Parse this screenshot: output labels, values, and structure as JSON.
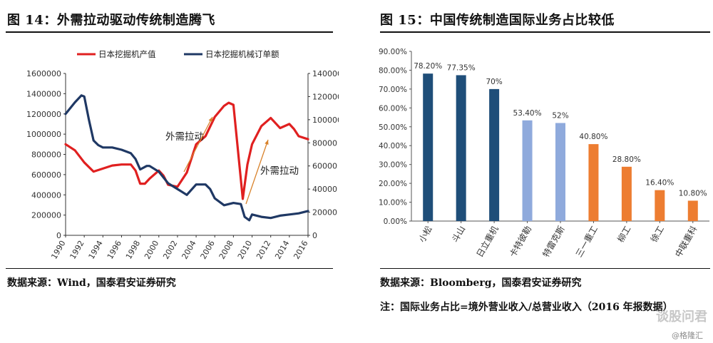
{
  "left": {
    "title": "图 14：外需拉动驱动传统制造腾飞",
    "source": "数据来源：Wind，国泰君安证券研究",
    "chart_data": {
      "type": "line",
      "legend": [
        "日本挖掘机产值",
        "日本挖掘机械订单额"
      ],
      "legend_position": "top",
      "x_ticks": [
        "1990",
        "1992",
        "1994",
        "1996",
        "1998",
        "2000",
        "2002",
        "2004",
        "2006",
        "2008",
        "2010",
        "2012",
        "2014",
        "2016"
      ],
      "y_left_ticks": [
        "0",
        "200000",
        "400000",
        "600000",
        "800000",
        "1000000",
        "1200000",
        "1400000",
        "1600000"
      ],
      "y_right_ticks": [
        "0",
        "20000",
        "40000",
        "60000",
        "80000",
        "100000",
        "120000",
        "140000"
      ],
      "ylim_left": [
        0,
        1600000
      ],
      "ylim_right": [
        0,
        140000
      ],
      "series": [
        {
          "name": "日本挖掘机产值",
          "axis": "left",
          "color": "#e02020",
          "x": [
            1990,
            1991,
            1992,
            1993,
            1994,
            1995,
            1996,
            1997,
            1997.5,
            1998,
            1998.5,
            1999,
            2000,
            2000.5,
            2001,
            2002,
            2003,
            2004,
            2005,
            2006,
            2007,
            2007.5,
            2008,
            2009,
            2009.5,
            2010,
            2011,
            2012,
            2013,
            2014,
            2014.5,
            2015,
            2016
          ],
          "y": [
            900000,
            840000,
            720000,
            630000,
            660000,
            690000,
            700000,
            700000,
            640000,
            510000,
            510000,
            560000,
            640000,
            590000,
            500000,
            480000,
            620000,
            900000,
            980000,
            1170000,
            1280000,
            1310000,
            1290000,
            360000,
            700000,
            900000,
            1080000,
            1160000,
            1060000,
            1100000,
            1050000,
            980000,
            950000
          ]
        },
        {
          "name": "日本挖掘机械订单额",
          "axis": "right",
          "color": "#1f3864",
          "x": [
            1990,
            1991,
            1991.7,
            1992,
            1992.5,
            1993,
            1993.5,
            1994,
            1995,
            1996,
            1997,
            1997.5,
            1998,
            1998.7,
            1999,
            2000,
            2001,
            2002,
            2003,
            2004,
            2005,
            2005.5,
            2006,
            2007,
            2008,
            2008.8,
            2009.2,
            2009.7,
            2010,
            2011,
            2012,
            2013,
            2014,
            2015,
            2016
          ],
          "y": [
            105000,
            115000,
            121000,
            120000,
            100000,
            82000,
            78000,
            76000,
            76000,
            74000,
            71000,
            66000,
            57000,
            60000,
            60000,
            55000,
            45000,
            40000,
            35000,
            44000,
            44000,
            40000,
            32000,
            26000,
            28000,
            27000,
            16000,
            13000,
            18000,
            16000,
            15000,
            17000,
            18000,
            19000,
            21000
          ]
        }
      ],
      "annotations": [
        "外需拉动",
        "外需拉动"
      ]
    }
  },
  "right": {
    "title": "图 15：中国传统制造国际业务占比较低",
    "source": "数据来源：Bloomberg，国泰君安证券研究",
    "note": "注：国际业务占比=境外营业收入/总营业收入（2016 年报数据）",
    "chart_data": {
      "type": "bar",
      "categories": [
        "小松",
        "斗山",
        "日立重机",
        "卡特彼勒",
        "特雷克斯",
        "三一重工",
        "柳工",
        "徐工",
        "中联重科"
      ],
      "values": [
        78.2,
        77.35,
        70,
        53.4,
        52,
        40.8,
        28.8,
        16.4,
        10.8
      ],
      "labels": [
        "78.20%",
        "77.35%",
        "70%",
        "53.40%",
        "52%",
        "40.80%",
        "28.80%",
        "16.40%",
        "10.80%"
      ],
      "colors": [
        "#1f4e79",
        "#1f4e79",
        "#1f4e79",
        "#8faadc",
        "#8faadc",
        "#ed7d31",
        "#ed7d31",
        "#ed7d31",
        "#ed7d31"
      ],
      "y_ticks": [
        "0.00%",
        "10.00%",
        "20.00%",
        "30.00%",
        "40.00%",
        "50.00%",
        "60.00%",
        "70.00%",
        "80.00%",
        "90.00%"
      ],
      "ylim": [
        0,
        90
      ]
    }
  },
  "watermark": {
    "brand": "谈股问君",
    "credit": "@格隆汇"
  }
}
